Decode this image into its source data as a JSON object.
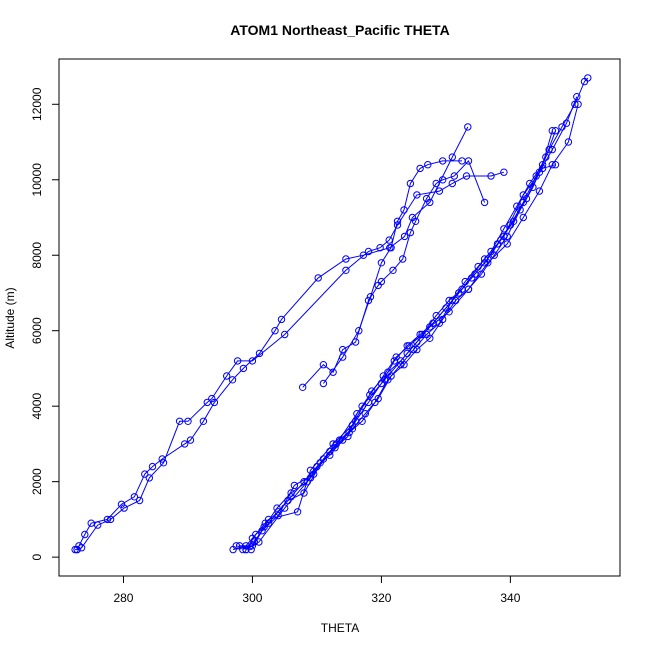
{
  "chart_data": {
    "type": "line",
    "title": "ATOM1 Northeast_Pacific THETA",
    "xlabel": "THETA",
    "ylabel": "Altitude (m)",
    "xlim": [
      270,
      357
    ],
    "ylim": [
      -500,
      13200
    ],
    "xticks": [
      280,
      300,
      320,
      340
    ],
    "yticks": [
      0,
      2000,
      4000,
      6000,
      8000,
      10000,
      12000
    ],
    "grid": false,
    "legend": "none",
    "color": "#0000ff",
    "series": [
      {
        "x": [
          272.5,
          272.8,
          273.1,
          274.0,
          275.0,
          277.5,
          279.7,
          281.7,
          283.3,
          284.5,
          286.0,
          289.5,
          290.4,
          292.4,
          294.1,
          296.9,
          298.6,
          301.1,
          303.5,
          304.5,
          310.2,
          314.5,
          317.2,
          321.3,
          323.6,
          324.8,
          327.5,
          331.0,
          333.4
        ],
        "y": [
          200,
          200,
          300,
          600,
          900,
          1000,
          1400,
          1600,
          2200,
          2400,
          2600,
          3000,
          3100,
          3600,
          4100,
          4700,
          5000,
          5400,
          6000,
          6300,
          7400,
          7900,
          8000,
          8200,
          8500,
          9000,
          9400,
          10600,
          11400
        ]
      },
      {
        "x": [
          272.8,
          273.5,
          276.0,
          278.0,
          280.1,
          282.5,
          284.0,
          286.2,
          288.7,
          290.0,
          293.0,
          293.7,
          296.0,
          297.7,
          300.0,
          305.0,
          314.5,
          318.0,
          319.8,
          321.2,
          322.5,
          325.5,
          329.0,
          331.0,
          333.2,
          337.0,
          339.0
        ],
        "y": [
          200,
          250,
          850,
          1000,
          1300,
          1500,
          2100,
          2500,
          3600,
          3600,
          4100,
          4200,
          4800,
          5200,
          5200,
          5900,
          7600,
          8100,
          8200,
          8400,
          8800,
          9600,
          9700,
          9900,
          10100,
          10100,
          10200
        ]
      },
      {
        "x": [
          307.8,
          311.0,
          312.5,
          314.0,
          316.0,
          318.0,
          319.5,
          320.0,
          321.8,
          323.3,
          324.5,
          325.3,
          327.0,
          328.5,
          329.5,
          331.3,
          333.5,
          336.0
        ],
        "y": [
          4500,
          5100,
          4900,
          5500,
          5700,
          6800,
          7200,
          7300,
          7600,
          7900,
          8600,
          8900,
          9500,
          9900,
          10000,
          10100,
          10500,
          9400
        ]
      },
      {
        "x": [
          311.0,
          314.0,
          316.5,
          318.3,
          320.0,
          321.5,
          322.5,
          323.5,
          324.5,
          326.0,
          327.2,
          329.5,
          332.5
        ],
        "y": [
          4600,
          5300,
          6000,
          6900,
          7800,
          8200,
          8900,
          9200,
          9900,
          10300,
          10400,
          10500,
          10500
        ]
      },
      {
        "x": [
          297.0,
          299.0,
          300.0,
          302.0,
          304.0,
          306.0,
          308.0,
          310.0,
          312.0,
          314.0,
          316.0,
          318.0,
          320.0,
          322.0,
          324.0,
          326.0,
          328.0,
          330.0,
          332.0,
          334.0,
          336.0,
          338.0,
          340.0,
          342.0,
          344.0,
          346.0,
          348.0,
          350.0,
          351.5,
          352.0
        ],
        "y": [
          200,
          300,
          500,
          900,
          1200,
          1600,
          2000,
          2400,
          2700,
          3100,
          3600,
          4100,
          4600,
          5200,
          5600,
          5900,
          6200,
          6600,
          7000,
          7400,
          7800,
          8300,
          8800,
          9400,
          10100,
          10800,
          11400,
          12000,
          12600,
          12700
        ]
      },
      {
        "x": [
          298.5,
          300.3,
          301.8,
          303.8,
          306.0,
          308.5,
          310.5,
          312.8,
          314.8,
          316.2,
          318.2,
          320.3,
          322.3,
          324.3,
          326.3,
          328.5,
          330.5,
          332.5,
          334.5,
          336.5,
          338.5,
          340.5,
          342.5,
          344.5,
          346.5,
          348.7,
          350.3
        ],
        "y": [
          200,
          400,
          800,
          1300,
          1700,
          2000,
          2500,
          2900,
          3200,
          3800,
          4300,
          4800,
          5300,
          5600,
          5900,
          6400,
          6800,
          7100,
          7500,
          7900,
          8400,
          8900,
          9500,
          10200,
          10800,
          11500,
          12200
        ]
      },
      {
        "x": [
          299.0,
          300.5,
          302.5,
          305.5,
          308.0,
          311.0,
          313.5,
          315.5,
          317.5,
          319.5,
          321.5,
          323.5,
          325.5,
          327.5,
          329.5,
          331.5,
          333.5,
          335.5,
          337.5,
          339.5,
          341.5,
          343.5,
          345.5,
          347.0
        ],
        "y": [
          200,
          600,
          900,
          1500,
          1700,
          2600,
          3100,
          3400,
          3800,
          4200,
          4800,
          5100,
          5500,
          5800,
          6300,
          6800,
          7100,
          7500,
          8000,
          8500,
          9200,
          9800,
          10600,
          11300
        ]
      },
      {
        "x": [
          298.0,
          300.0,
          301.5,
          304.0,
          306.5,
          309.5,
          312.0,
          315.0,
          317.0,
          319.0,
          321.0,
          323.0,
          325.0,
          327.0,
          329.0,
          331.0,
          333.0,
          335.0,
          337.0,
          339.0,
          341.0,
          343.0,
          345.0,
          346.5
        ],
        "y": [
          300,
          300,
          700,
          1100,
          1900,
          2200,
          2800,
          3300,
          3600,
          4100,
          4700,
          5100,
          5500,
          5900,
          6200,
          6800,
          7300,
          7700,
          8100,
          8700,
          9300,
          9900,
          10400,
          11300
        ]
      },
      {
        "x": [
          297.5,
          299.8,
          302.5,
          307.0,
          309.0,
          312.5,
          315.5,
          318.5,
          321.0,
          323.0,
          325.5,
          327.5,
          330.5,
          333.5,
          336.5,
          339.5,
          342.0,
          344.5,
          346.5,
          349.0,
          350.5
        ],
        "y": [
          300,
          200,
          1000,
          1200,
          2300,
          3000,
          3500,
          4400,
          4900,
          5200,
          5700,
          6100,
          6500,
          7100,
          7800,
          8300,
          9000,
          9700,
          10400,
          11000,
          12000
        ]
      },
      {
        "x": [
          299.0,
          301.0,
          305.0,
          309.0,
          313.0,
          317.0,
          320.5,
          324.0,
          328.0,
          332.0,
          336.0,
          339.0,
          342.0,
          345.0,
          347.0
        ],
        "y": [
          200,
          400,
          1300,
          2100,
          3000,
          4000,
          4700,
          5400,
          6200,
          7000,
          7900,
          8500,
          9600,
          10300,
          10400
        ]
      }
    ]
  }
}
